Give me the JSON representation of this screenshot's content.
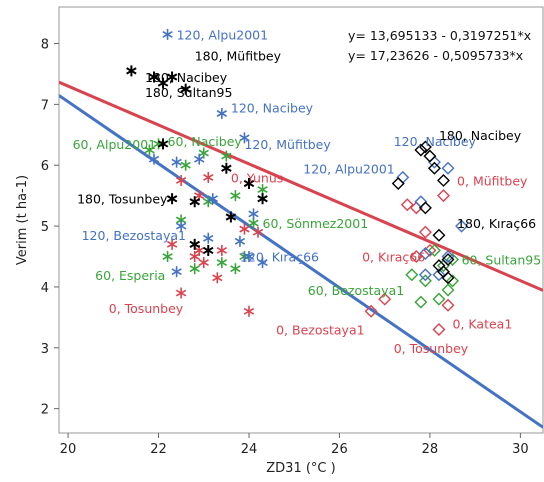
{
  "chart_data": {
    "type": "scatter",
    "title": "",
    "xlabel": "ZD31 (°C )",
    "ylabel": "Verim (t ha-1)",
    "xlim": [
      19.8,
      30.5
    ],
    "ylim": [
      1.6,
      8.6
    ],
    "xticks": [
      "20",
      "22",
      "24",
      "26",
      "28",
      "30"
    ],
    "yticks": [
      "2",
      "3",
      "4",
      "5",
      "6",
      "7",
      "8"
    ],
    "grid": false,
    "colors": {
      "0": "#d9434f",
      "60": "#3aa43a",
      "120": "#4472c4",
      "180": "#000000",
      "fit_red": "#d9434f",
      "fit_blue": "#4472c4"
    },
    "equations": [
      "y= 13,695133 - 0,3197251*x",
      "y= 17,23626 - 0,5095733*x"
    ],
    "fit_lines": [
      {
        "color": "red",
        "intercept": 13.695133,
        "slope": -0.3197251
      },
      {
        "color": "blue",
        "intercept": 17.23626,
        "slope": -0.5095733
      }
    ],
    "series": [
      {
        "group": "0",
        "marker": "star",
        "points": [
          [
            22.3,
            4.7
          ],
          [
            22.5,
            3.9
          ],
          [
            22.8,
            4.5
          ],
          [
            22.9,
            4.6
          ],
          [
            23.0,
            4.4
          ],
          [
            23.3,
            4.15
          ],
          [
            23.4,
            4.6
          ],
          [
            23.9,
            4.95
          ],
          [
            24.0,
            3.6
          ],
          [
            24.2,
            4.9
          ],
          [
            22.9,
            5.5
          ],
          [
            23.1,
            5.8
          ],
          [
            22.5,
            5.75
          ]
        ]
      },
      {
        "group": "60",
        "marker": "star",
        "points": [
          [
            21.8,
            6.25
          ],
          [
            22.0,
            6.35
          ],
          [
            22.6,
            6.0
          ],
          [
            23.0,
            6.2
          ],
          [
            23.5,
            6.15
          ],
          [
            22.5,
            5.1
          ],
          [
            23.1,
            5.4
          ],
          [
            23.7,
            5.5
          ],
          [
            24.3,
            5.6
          ],
          [
            24.1,
            5.05
          ],
          [
            22.2,
            4.5
          ],
          [
            22.8,
            4.3
          ],
          [
            23.4,
            4.4
          ],
          [
            23.7,
            4.3
          ],
          [
            23.9,
            4.5
          ]
        ]
      },
      {
        "group": "120",
        "marker": "star",
        "points": [
          [
            22.2,
            8.15
          ],
          [
            23.4,
            6.85
          ],
          [
            23.9,
            6.45
          ],
          [
            21.9,
            6.1
          ],
          [
            22.4,
            6.05
          ],
          [
            22.9,
            6.1
          ],
          [
            23.2,
            5.45
          ],
          [
            22.5,
            5.0
          ],
          [
            23.1,
            4.8
          ],
          [
            23.8,
            4.75
          ],
          [
            24.3,
            4.4
          ],
          [
            24.1,
            5.2
          ],
          [
            22.4,
            4.25
          ],
          [
            24.0,
            4.5
          ]
        ]
      },
      {
        "group": "180",
        "marker": "star",
        "points": [
          [
            21.4,
            7.55
          ],
          [
            21.9,
            7.45
          ],
          [
            22.1,
            7.35
          ],
          [
            22.3,
            7.45
          ],
          [
            22.6,
            7.25
          ],
          [
            22.1,
            6.35
          ],
          [
            23.5,
            5.95
          ],
          [
            24.0,
            5.7
          ],
          [
            22.3,
            5.45
          ],
          [
            22.8,
            5.4
          ],
          [
            23.6,
            5.15
          ],
          [
            24.3,
            5.45
          ],
          [
            22.8,
            4.7
          ],
          [
            23.1,
            4.6
          ]
        ]
      },
      {
        "group": "0",
        "marker": "diamond",
        "points": [
          [
            26.7,
            3.6
          ],
          [
            27.0,
            3.8
          ],
          [
            27.5,
            5.35
          ],
          [
            27.7,
            5.3
          ],
          [
            28.2,
            3.3
          ],
          [
            28.4,
            3.7
          ],
          [
            28.3,
            5.5
          ],
          [
            27.7,
            4.5
          ],
          [
            27.9,
            4.9
          ],
          [
            28.0,
            4.6
          ]
        ]
      },
      {
        "group": "60",
        "marker": "diamond",
        "points": [
          [
            27.6,
            4.2
          ],
          [
            27.8,
            3.75
          ],
          [
            27.9,
            4.1
          ],
          [
            28.1,
            4.6
          ],
          [
            28.3,
            4.35
          ],
          [
            28.4,
            3.95
          ],
          [
            28.5,
            4.1
          ],
          [
            28.5,
            4.45
          ],
          [
            28.2,
            3.8
          ]
        ]
      },
      {
        "group": "120",
        "marker": "diamond",
        "points": [
          [
            27.4,
            5.8
          ],
          [
            27.8,
            5.4
          ],
          [
            28.1,
            6.05
          ],
          [
            28.4,
            5.95
          ],
          [
            28.7,
            5.0
          ],
          [
            27.9,
            4.55
          ],
          [
            28.2,
            4.2
          ],
          [
            27.9,
            4.2
          ],
          [
            28.4,
            4.5
          ]
        ]
      },
      {
        "group": "180",
        "marker": "diamond",
        "points": [
          [
            27.3,
            5.7
          ],
          [
            27.8,
            6.25
          ],
          [
            27.9,
            6.3
          ],
          [
            28.0,
            6.15
          ],
          [
            28.1,
            5.95
          ],
          [
            28.3,
            5.75
          ],
          [
            27.9,
            5.3
          ],
          [
            28.2,
            4.85
          ],
          [
            28.2,
            4.35
          ],
          [
            28.3,
            4.25
          ],
          [
            28.4,
            4.15
          ],
          [
            28.4,
            4.45
          ]
        ]
      }
    ],
    "annotations": [
      {
        "text": "120, Alpu2001",
        "x": 22.4,
        "y": 8.15,
        "group": "120"
      },
      {
        "text": "180, Müfitbey",
        "x": 22.8,
        "y": 7.8,
        "group": "180"
      },
      {
        "text": "180, Nacibey",
        "x": 21.7,
        "y": 7.45,
        "group": "180"
      },
      {
        "text": "180, Sultan95",
        "x": 21.7,
        "y": 7.2,
        "group": "180"
      },
      {
        "text": "120, Nacibey",
        "x": 23.6,
        "y": 6.95,
        "group": "120"
      },
      {
        "text": "60, Alpu2001",
        "x": 20.1,
        "y": 6.35,
        "group": "60"
      },
      {
        "text": "60, Nacibey",
        "x": 22.2,
        "y": 6.4,
        "group": "60"
      },
      {
        "text": "120, Müfitbey",
        "x": 23.9,
        "y": 6.35,
        "group": "120"
      },
      {
        "text": "120, Alpu2001",
        "x": 25.2,
        "y": 5.95,
        "group": "120"
      },
      {
        "text": "0, Yunus",
        "x": 23.6,
        "y": 5.8,
        "group": "0"
      },
      {
        "text": "180, Tosunbey",
        "x": 20.2,
        "y": 5.45,
        "group": "180"
      },
      {
        "text": "60, Sönmez2001",
        "x": 24.3,
        "y": 5.05,
        "group": "60"
      },
      {
        "text": "120, Bezostaya1",
        "x": 20.3,
        "y": 4.85,
        "group": "120"
      },
      {
        "text": "120, Kıraç66",
        "x": 23.8,
        "y": 4.5,
        "group": "120"
      },
      {
        "text": "60, Esperia",
        "x": 20.6,
        "y": 4.2,
        "group": "60"
      },
      {
        "text": "60, Bezostaya1",
        "x": 25.3,
        "y": 3.95,
        "group": "60"
      },
      {
        "text": "0, Tosunbey",
        "x": 20.9,
        "y": 3.65,
        "group": "0"
      },
      {
        "text": "0, Bezostaya1",
        "x": 24.6,
        "y": 3.3,
        "group": "0"
      },
      {
        "text": "120, Nacibey",
        "x": 27.2,
        "y": 6.4,
        "group": "120"
      },
      {
        "text": "180, Nacibey",
        "x": 28.2,
        "y": 6.5,
        "group": "180"
      },
      {
        "text": "0, Müfitbey",
        "x": 28.6,
        "y": 5.75,
        "group": "0"
      },
      {
        "text": "180, Kıraç66",
        "x": 28.6,
        "y": 5.05,
        "group": "180"
      },
      {
        "text": "0, Kıraç66",
        "x": 26.5,
        "y": 4.5,
        "group": "0"
      },
      {
        "text": "60, Sultan95",
        "x": 28.7,
        "y": 4.45,
        "group": "60"
      },
      {
        "text": "0, Katea1",
        "x": 28.5,
        "y": 3.4,
        "group": "0"
      },
      {
        "text": "0, Tosunbey",
        "x": 27.2,
        "y": 3.0,
        "group": "0"
      }
    ]
  }
}
